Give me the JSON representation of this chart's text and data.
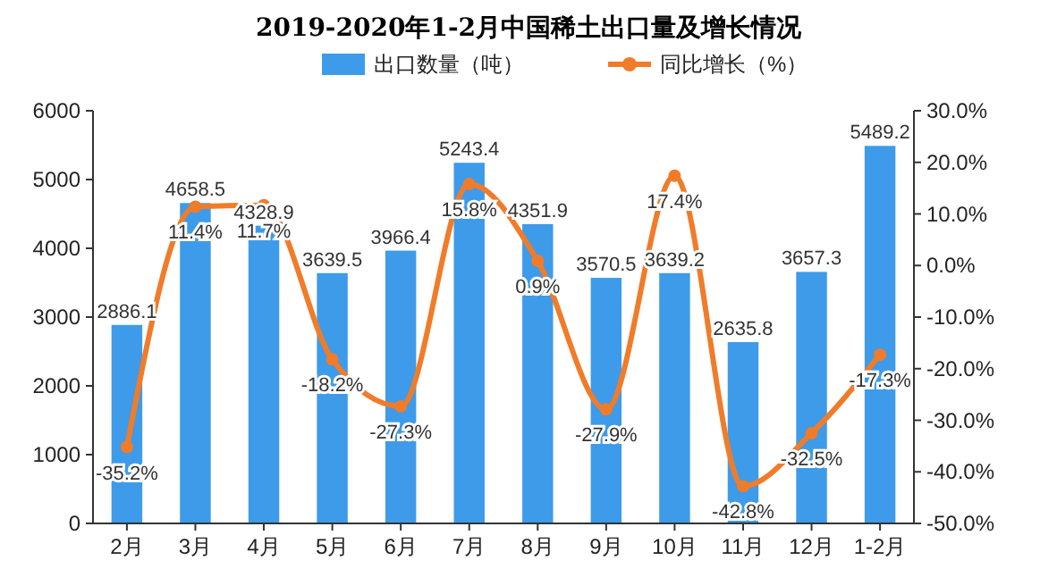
{
  "chart_data": {
    "type": "bar",
    "title": "2019-2020年1-2月中国稀土出口量及增长情况",
    "categories": [
      "2月",
      "3月",
      "4月",
      "5月",
      "6月",
      "7月",
      "8月",
      "9月",
      "10月",
      "11月",
      "12月",
      "1-2月"
    ],
    "series": [
      {
        "name": "出口数量（吨）",
        "color": "#3e9be9",
        "values": [
          2886.1,
          4658.5,
          4328.9,
          3639.5,
          3966.4,
          5243.4,
          4351.9,
          3570.5,
          3639.2,
          2635.8,
          3657.3,
          5489.2
        ]
      },
      {
        "name": "同比增长（%）",
        "type": "line",
        "axis": "y2",
        "color": "#f07c2a",
        "marker": "circle",
        "values": [
          -35.2,
          11.4,
          11.7,
          -18.2,
          -27.3,
          15.8,
          0.9,
          -27.9,
          17.4,
          -42.8,
          -32.5,
          -17.3
        ],
        "value_labels": [
          "-35.2%",
          "11.4%",
          "11.7%",
          "-18.2%",
          "-27.3%",
          "15.8%",
          "0.9%",
          "-27.9%",
          "17.4%",
          "-42.8%",
          "-32.5%",
          "-17.3%"
        ]
      }
    ],
    "data_labels": true,
    "ylim": [
      0,
      6000
    ],
    "yticks": [
      0,
      1000,
      2000,
      3000,
      4000,
      5000,
      6000
    ],
    "y2lim": [
      -50,
      30
    ],
    "y2ticks": [
      {
        "value": -50,
        "label": "-50.0%"
      },
      {
        "value": -40,
        "label": "-40.0%"
      },
      {
        "value": -30,
        "label": "-30.0%"
      },
      {
        "value": -20,
        "label": "-20.0%"
      },
      {
        "value": -10,
        "label": "-10.0%"
      },
      {
        "value": 0,
        "label": "0.0%"
      },
      {
        "value": 10,
        "label": "10.0%"
      },
      {
        "value": 20,
        "label": "20.0%"
      },
      {
        "value": 30,
        "label": "30.0%"
      }
    ],
    "legend": "top",
    "grid": false
  }
}
